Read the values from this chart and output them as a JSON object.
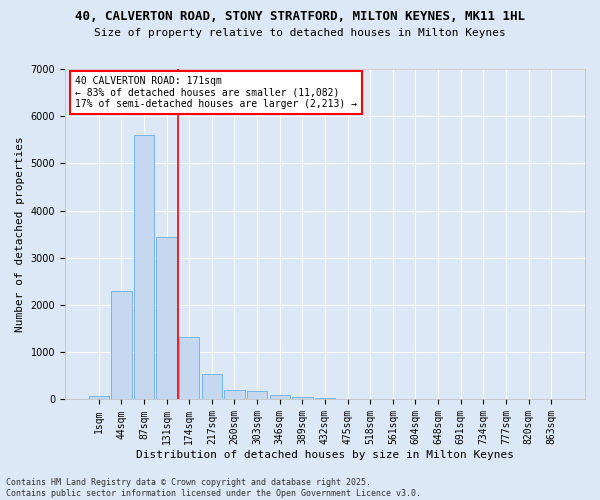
{
  "title_line1": "40, CALVERTON ROAD, STONY STRATFORD, MILTON KEYNES, MK11 1HL",
  "title_line2": "Size of property relative to detached houses in Milton Keynes",
  "xlabel": "Distribution of detached houses by size in Milton Keynes",
  "ylabel": "Number of detached properties",
  "categories": [
    "1sqm",
    "44sqm",
    "87sqm",
    "131sqm",
    "174sqm",
    "217sqm",
    "260sqm",
    "303sqm",
    "346sqm",
    "389sqm",
    "432sqm",
    "475sqm",
    "518sqm",
    "561sqm",
    "604sqm",
    "648sqm",
    "691sqm",
    "734sqm",
    "777sqm",
    "820sqm",
    "863sqm"
  ],
  "values": [
    70,
    2300,
    5600,
    3450,
    1320,
    530,
    210,
    175,
    100,
    60,
    35,
    0,
    0,
    0,
    0,
    0,
    0,
    0,
    0,
    0,
    0
  ],
  "bar_color": "#c5d8f0",
  "bar_edge_color": "#6aaee8",
  "vline_color": "red",
  "vline_x_pos": 3.5,
  "annotation_text": "40 CALVERTON ROAD: 171sqm\n← 83% of detached houses are smaller (11,082)\n17% of semi-detached houses are larger (2,213) →",
  "annotation_box_facecolor": "white",
  "annotation_box_edgecolor": "red",
  "background_color": "#dce8f5",
  "plot_background": "#dce8f5",
  "ylim": [
    0,
    7000
  ],
  "yticks": [
    0,
    1000,
    2000,
    3000,
    4000,
    5000,
    6000,
    7000
  ],
  "footer_text": "Contains HM Land Registry data © Crown copyright and database right 2025.\nContains public sector information licensed under the Open Government Licence v3.0.",
  "title_fontsize": 9,
  "subtitle_fontsize": 8,
  "axis_label_fontsize": 8,
  "tick_fontsize": 7,
  "annotation_fontsize": 7,
  "footer_fontsize": 6
}
